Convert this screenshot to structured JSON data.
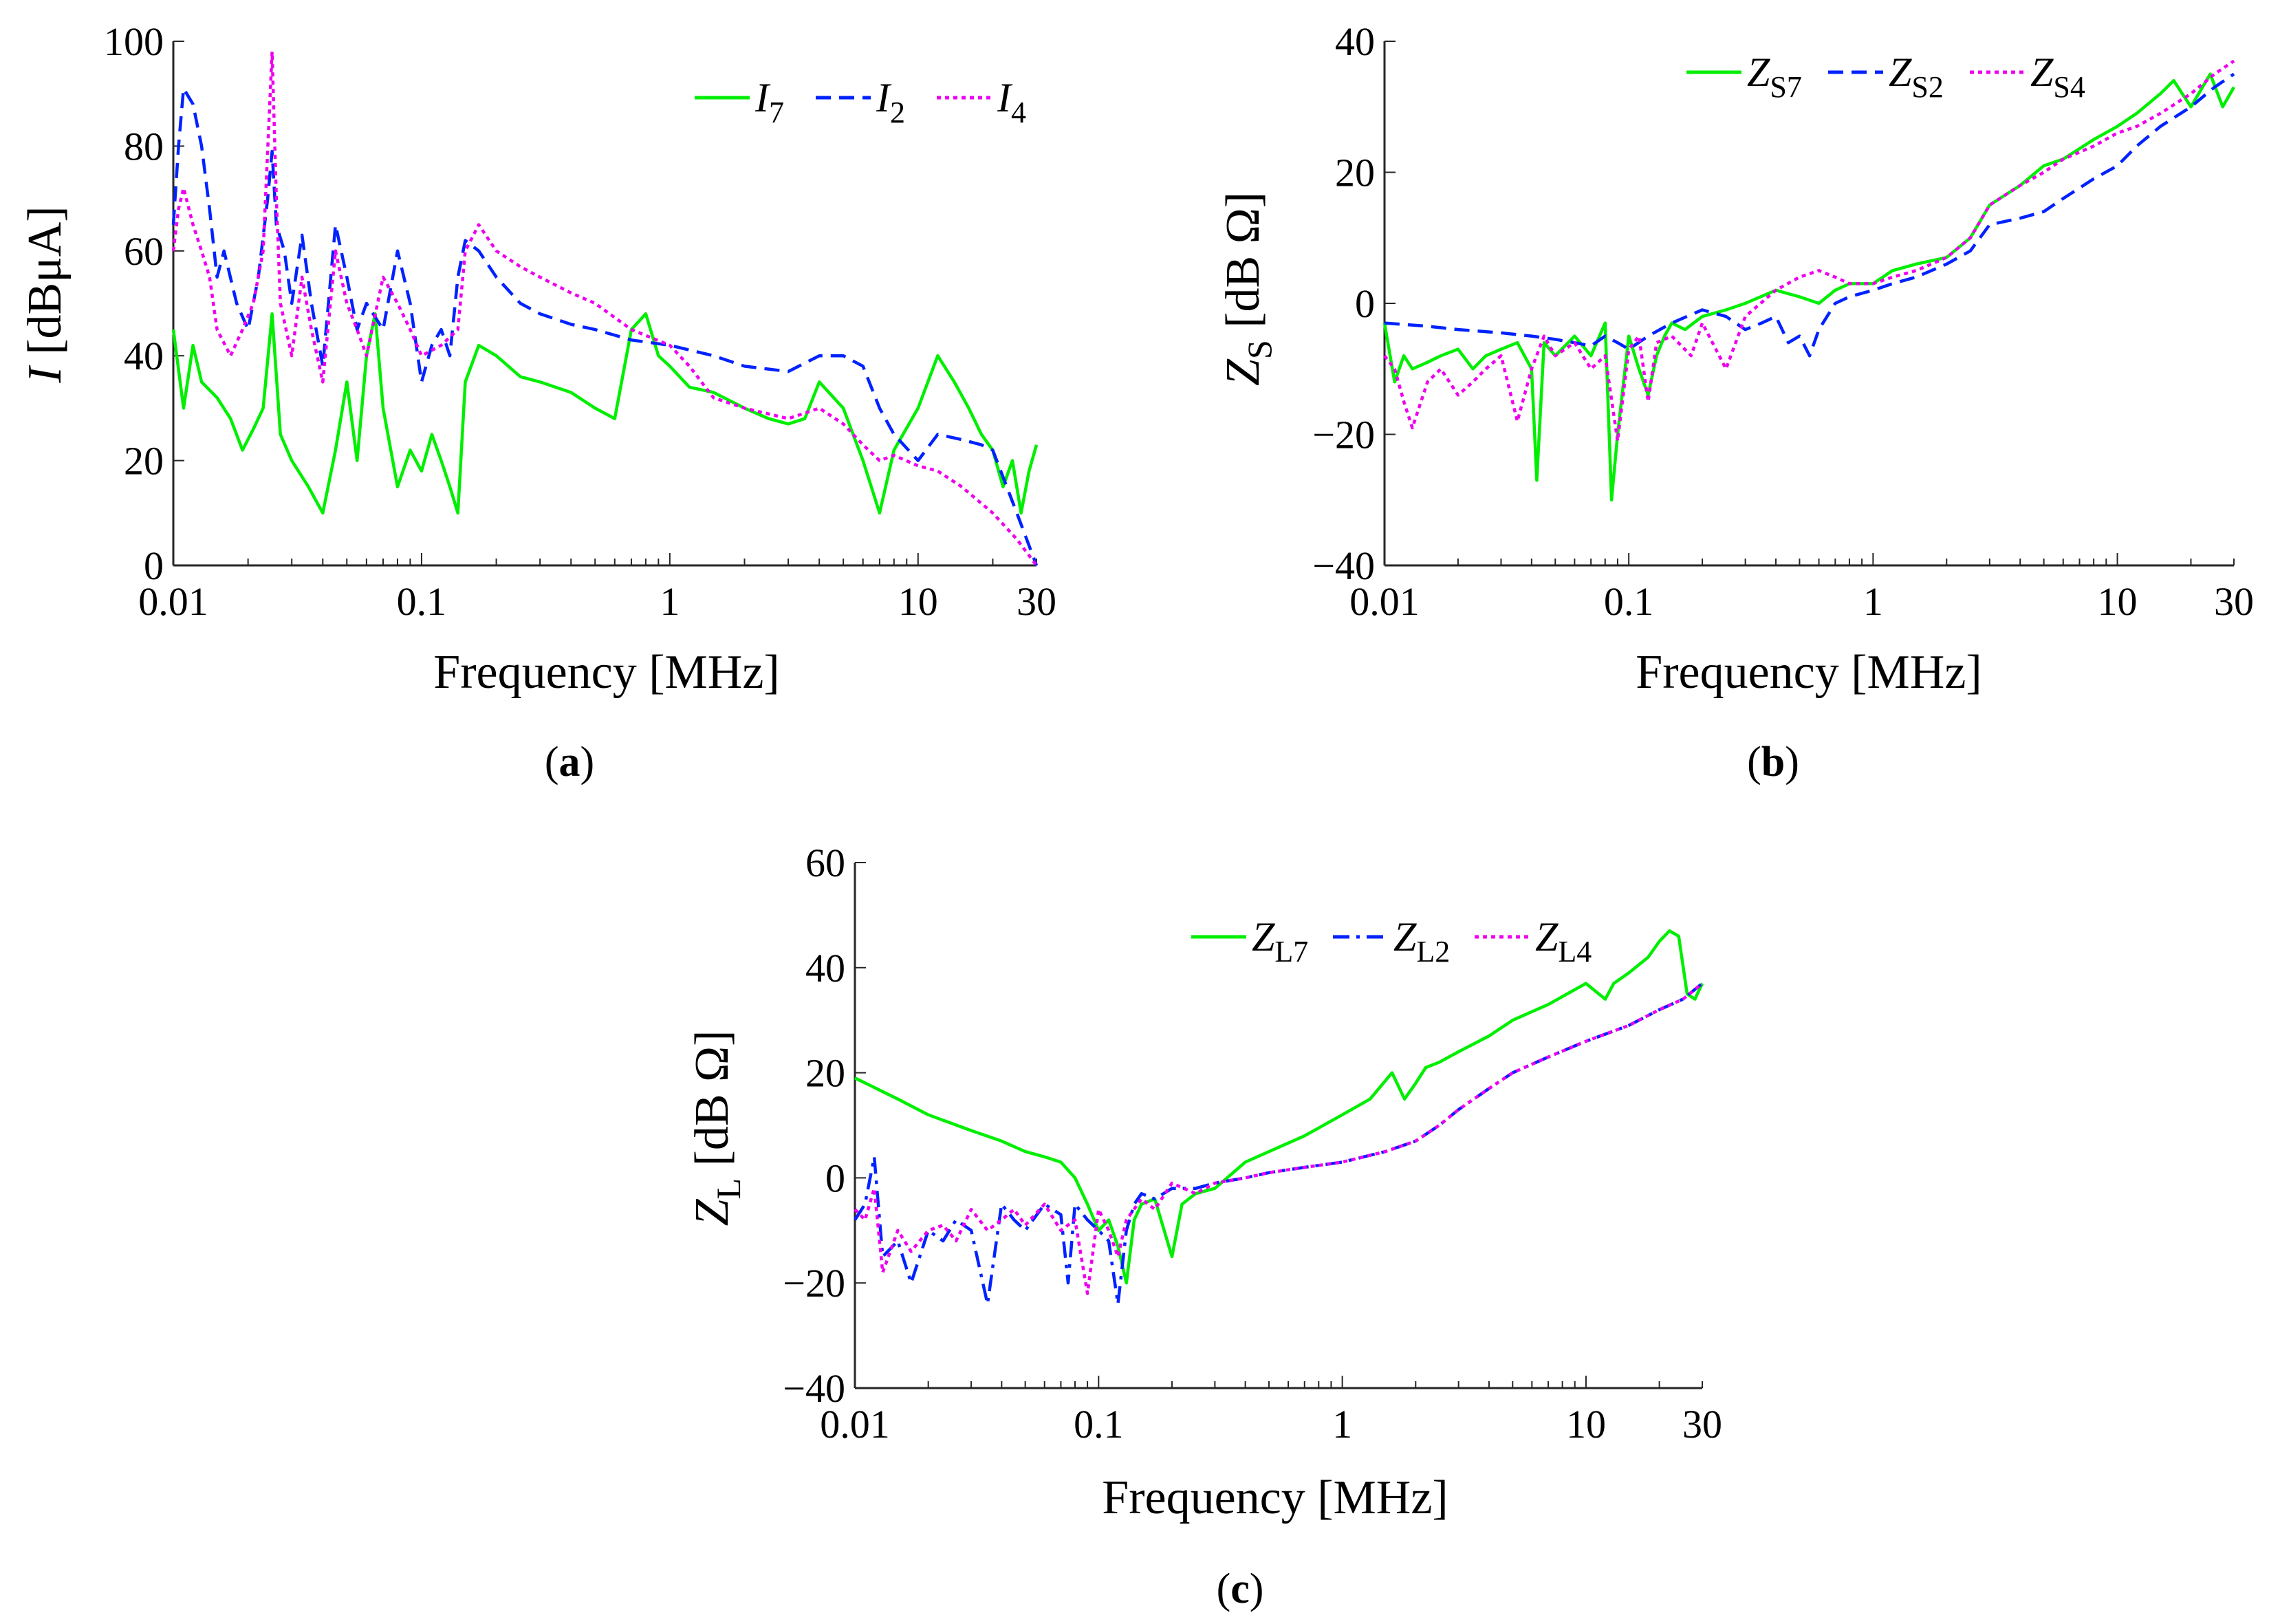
{
  "chart_data": [
    {
      "panel": "a",
      "caption_letter": "a",
      "type": "line",
      "x_scale": "log",
      "xlim": [
        0.01,
        30
      ],
      "ylim": [
        0,
        100
      ],
      "xticks": [
        0.01,
        0.1,
        1,
        10,
        30
      ],
      "xtick_labels": [
        "0.01",
        "0.1",
        "1",
        "10",
        "30"
      ],
      "yticks": [
        0,
        20,
        40,
        60,
        80,
        100
      ],
      "ytick_labels": [
        "0",
        "20",
        "40",
        "60",
        "80",
        "100"
      ],
      "xlabel": "Frequency [MHz]",
      "ylabel": {
        "symbol": "I",
        "unit": "[dBμA]"
      },
      "legend_position": "top-right",
      "series": [
        {
          "name": "I",
          "sub": "7",
          "color": "#00ee00",
          "dash": "solid",
          "x": [
            0.01,
            0.011,
            0.012,
            0.013,
            0.015,
            0.017,
            0.019,
            0.021,
            0.023,
            0.025,
            0.027,
            0.03,
            0.035,
            0.04,
            0.045,
            0.05,
            0.055,
            0.06,
            0.065,
            0.07,
            0.08,
            0.09,
            0.1,
            0.11,
            0.12,
            0.13,
            0.14,
            0.15,
            0.17,
            0.2,
            0.25,
            0.3,
            0.4,
            0.5,
            0.6,
            0.7,
            0.8,
            0.9,
            1,
            1.2,
            1.5,
            2,
            2.5,
            3,
            3.5,
            4,
            5,
            6,
            7,
            8,
            10,
            12,
            14,
            16,
            18,
            20,
            22,
            24,
            26,
            28,
            30
          ],
          "y": [
            45,
            30,
            42,
            35,
            32,
            28,
            22,
            26,
            30,
            48,
            25,
            20,
            15,
            10,
            22,
            35,
            20,
            40,
            48,
            30,
            15,
            22,
            18,
            25,
            20,
            15,
            10,
            35,
            42,
            40,
            36,
            35,
            33,
            30,
            28,
            45,
            48,
            40,
            38,
            34,
            33,
            30,
            28,
            27,
            28,
            35,
            30,
            20,
            10,
            22,
            30,
            40,
            35,
            30,
            25,
            22,
            15,
            20,
            10,
            18,
            23
          ]
        },
        {
          "name": "I",
          "sub": "2",
          "color": "#0022ff",
          "dash": "dashed",
          "x": [
            0.01,
            0.0105,
            0.011,
            0.012,
            0.013,
            0.014,
            0.015,
            0.016,
            0.018,
            0.02,
            0.022,
            0.024,
            0.025,
            0.026,
            0.028,
            0.03,
            0.033,
            0.036,
            0.04,
            0.045,
            0.05,
            0.055,
            0.06,
            0.07,
            0.08,
            0.09,
            0.1,
            0.11,
            0.12,
            0.13,
            0.14,
            0.15,
            0.17,
            0.2,
            0.25,
            0.3,
            0.4,
            0.5,
            0.7,
            1,
            1.5,
            2,
            3,
            4,
            5,
            6,
            7,
            8,
            10,
            12,
            15,
            18,
            20,
            25,
            30
          ],
          "y": [
            65,
            80,
            91,
            88,
            80,
            68,
            55,
            60,
            50,
            45,
            55,
            70,
            79,
            65,
            60,
            50,
            63,
            50,
            38,
            65,
            55,
            45,
            50,
            45,
            60,
            50,
            35,
            42,
            45,
            40,
            55,
            62,
            60,
            55,
            50,
            48,
            46,
            45,
            43,
            42,
            40,
            38,
            37,
            40,
            40,
            38,
            30,
            25,
            20,
            25,
            24,
            23,
            22,
            10,
            0
          ]
        },
        {
          "name": "I",
          "sub": "4",
          "color": "#ee00ee",
          "dash": "dotted",
          "x": [
            0.01,
            0.0105,
            0.011,
            0.012,
            0.013,
            0.014,
            0.015,
            0.017,
            0.019,
            0.021,
            0.023,
            0.025,
            0.026,
            0.027,
            0.03,
            0.033,
            0.036,
            0.04,
            0.045,
            0.05,
            0.055,
            0.06,
            0.07,
            0.08,
            0.09,
            0.1,
            0.12,
            0.14,
            0.15,
            0.17,
            0.2,
            0.25,
            0.3,
            0.4,
            0.5,
            0.7,
            1,
            1.2,
            1.5,
            2,
            3,
            4,
            5,
            6,
            7,
            8,
            10,
            12,
            15,
            20,
            25,
            30
          ],
          "y": [
            60,
            68,
            72,
            65,
            60,
            55,
            45,
            40,
            45,
            50,
            60,
            98,
            70,
            50,
            40,
            55,
            45,
            35,
            60,
            50,
            45,
            40,
            55,
            50,
            45,
            40,
            42,
            45,
            60,
            65,
            60,
            57,
            55,
            52,
            50,
            45,
            42,
            38,
            32,
            30,
            28,
            30,
            27,
            23,
            20,
            21,
            19,
            18,
            15,
            10,
            5,
            0
          ]
        }
      ]
    },
    {
      "panel": "b",
      "caption_letter": "b",
      "type": "line",
      "x_scale": "log",
      "xlim": [
        0.01,
        30
      ],
      "ylim": [
        -40,
        40
      ],
      "xticks": [
        0.01,
        0.1,
        1,
        10,
        30
      ],
      "xtick_labels": [
        "0.01",
        "0.1",
        "1",
        "10",
        "30"
      ],
      "yticks": [
        -40,
        -20,
        0,
        20,
        40
      ],
      "ytick_labels": [
        "−40",
        "−20",
        "0",
        "20",
        "40"
      ],
      "xlabel": "Frequency [MHz]",
      "ylabel": {
        "symbol": "Z",
        "sub": "S",
        "unit": "[dB Ω]"
      },
      "legend_position": "top",
      "series": [
        {
          "name": "Z",
          "sub": "S7",
          "color": "#00ee00",
          "dash": "solid",
          "x": [
            0.01,
            0.011,
            0.012,
            0.013,
            0.015,
            0.017,
            0.02,
            0.023,
            0.026,
            0.03,
            0.035,
            0.04,
            0.042,
            0.045,
            0.05,
            0.06,
            0.07,
            0.08,
            0.085,
            0.09,
            0.1,
            0.11,
            0.12,
            0.13,
            0.14,
            0.15,
            0.17,
            0.2,
            0.25,
            0.3,
            0.4,
            0.5,
            0.6,
            0.7,
            0.8,
            1,
            1.2,
            1.5,
            2,
            2.5,
            3,
            4,
            5,
            6,
            8,
            10,
            12,
            15,
            17,
            20,
            24,
            27,
            30
          ],
          "y": [
            -3,
            -12,
            -8,
            -10,
            -9,
            -8,
            -7,
            -10,
            -8,
            -7,
            -6,
            -10,
            -27,
            -6,
            -8,
            -5,
            -8,
            -3,
            -30,
            -20,
            -5,
            -10,
            -14,
            -8,
            -5,
            -3,
            -4,
            -2,
            -1,
            0,
            2,
            1,
            0,
            2,
            3,
            3,
            5,
            6,
            7,
            10,
            15,
            18,
            21,
            22,
            25,
            27,
            29,
            32,
            34,
            30,
            35,
            30,
            33
          ]
        },
        {
          "name": "Z",
          "sub": "S2",
          "color": "#0022ff",
          "dash": "dashed",
          "x": [
            0.01,
            0.015,
            0.02,
            0.03,
            0.04,
            0.05,
            0.06,
            0.07,
            0.08,
            0.09,
            0.1,
            0.12,
            0.15,
            0.2,
            0.25,
            0.3,
            0.35,
            0.4,
            0.45,
            0.5,
            0.55,
            0.6,
            0.7,
            0.8,
            1,
            1.2,
            1.5,
            2,
            2.5,
            3,
            4,
            5,
            6,
            8,
            10,
            12,
            15,
            20,
            25,
            30
          ],
          "y": [
            -3,
            -3.5,
            -4,
            -4.5,
            -5,
            -5.5,
            -6,
            -6.5,
            -5,
            -6,
            -7,
            -5,
            -3,
            -1,
            -2,
            -4,
            -3,
            -2,
            -6,
            -5,
            -8,
            -4,
            0,
            1,
            2,
            3,
            4,
            6,
            8,
            12,
            13,
            14,
            16,
            19,
            21,
            24,
            27,
            30,
            33,
            35
          ]
        },
        {
          "name": "Z",
          "sub": "S4",
          "color": "#ee00ee",
          "dash": "dotted",
          "x": [
            0.01,
            0.011,
            0.012,
            0.013,
            0.015,
            0.017,
            0.02,
            0.023,
            0.026,
            0.03,
            0.035,
            0.04,
            0.045,
            0.05,
            0.06,
            0.07,
            0.08,
            0.09,
            0.1,
            0.11,
            0.12,
            0.13,
            0.15,
            0.18,
            0.2,
            0.25,
            0.3,
            0.4,
            0.5,
            0.6,
            0.7,
            0.8,
            1,
            1.2,
            1.5,
            2,
            2.5,
            3,
            4,
            5,
            6,
            8,
            10,
            12,
            15,
            20,
            25,
            30
          ],
          "y": [
            -8,
            -10,
            -15,
            -19,
            -12,
            -10,
            -14,
            -12,
            -10,
            -8,
            -18,
            -10,
            -5,
            -8,
            -6,
            -10,
            -8,
            -21,
            -7,
            -5,
            -15,
            -6,
            -5,
            -8,
            -3,
            -10,
            -2,
            2,
            4,
            5,
            4,
            3,
            3,
            4,
            5,
            7,
            10,
            15,
            18,
            20,
            22,
            24,
            26,
            27,
            29,
            32,
            35,
            37
          ]
        }
      ]
    },
    {
      "panel": "c",
      "caption_letter": "c",
      "type": "line",
      "x_scale": "log",
      "xlim": [
        0.01,
        30
      ],
      "ylim": [
        -40,
        60
      ],
      "xticks": [
        0.01,
        0.1,
        1,
        10,
        30
      ],
      "xtick_labels": [
        "0.01",
        "0.1",
        "1",
        "10",
        "30"
      ],
      "yticks": [
        -40,
        -20,
        0,
        20,
        40,
        60
      ],
      "ytick_labels": [
        "−40",
        "−20",
        "0",
        "20",
        "40",
        "60"
      ],
      "xlabel": "Frequency [MHz]",
      "ylabel": {
        "symbol": "Z",
        "sub": "L",
        "unit": "[dB Ω]"
      },
      "legend_position": "top-right",
      "series": [
        {
          "name": "Z",
          "sub": "L7",
          "color": "#00ee00",
          "dash": "solid",
          "x": [
            0.01,
            0.015,
            0.02,
            0.03,
            0.04,
            0.05,
            0.06,
            0.07,
            0.08,
            0.09,
            0.1,
            0.11,
            0.12,
            0.13,
            0.14,
            0.15,
            0.17,
            0.2,
            0.22,
            0.25,
            0.3,
            0.4,
            0.5,
            0.7,
            1,
            1.3,
            1.6,
            1.8,
            2,
            2.2,
            2.5,
            3,
            4,
            5,
            7,
            10,
            12,
            13,
            15,
            18,
            20,
            22,
            24,
            26,
            28,
            30
          ],
          "y": [
            19,
            15,
            12,
            9,
            7,
            5,
            4,
            3,
            0,
            -5,
            -10,
            -8,
            -13,
            -20,
            -8,
            -5,
            -4,
            -15,
            -5,
            -3,
            -2,
            3,
            5,
            8,
            12,
            15,
            20,
            15,
            18,
            21,
            22,
            24,
            27,
            30,
            33,
            37,
            34,
            37,
            39,
            42,
            45,
            47,
            46,
            35,
            34,
            37
          ]
        },
        {
          "name": "Z",
          "sub": "L2",
          "color": "#0022ff",
          "dash": "dashdot",
          "x": [
            0.01,
            0.011,
            0.012,
            0.013,
            0.015,
            0.017,
            0.02,
            0.023,
            0.026,
            0.03,
            0.035,
            0.04,
            0.045,
            0.05,
            0.06,
            0.07,
            0.075,
            0.08,
            0.09,
            0.1,
            0.11,
            0.12,
            0.13,
            0.14,
            0.15,
            0.17,
            0.2,
            0.25,
            0.3,
            0.4,
            0.5,
            0.7,
            1,
            1.5,
            2,
            2.5,
            3,
            4,
            5,
            7,
            10,
            15,
            20,
            25,
            30
          ],
          "y": [
            -8,
            -5,
            4,
            -15,
            -12,
            -20,
            -10,
            -12,
            -8,
            -10,
            -24,
            -5,
            -8,
            -10,
            -5,
            -7,
            -20,
            -5,
            -8,
            -10,
            -12,
            -24,
            -10,
            -5,
            -3,
            -4,
            -2,
            -2,
            -1,
            0,
            1,
            2,
            3,
            5,
            7,
            10,
            13,
            17,
            20,
            23,
            26,
            29,
            32,
            34,
            37
          ]
        },
        {
          "name": "Z",
          "sub": "L4",
          "color": "#ee00ee",
          "dash": "dotted",
          "x": [
            0.01,
            0.011,
            0.012,
            0.013,
            0.015,
            0.017,
            0.02,
            0.023,
            0.026,
            0.03,
            0.035,
            0.04,
            0.045,
            0.05,
            0.06,
            0.07,
            0.08,
            0.09,
            0.1,
            0.11,
            0.12,
            0.13,
            0.15,
            0.17,
            0.2,
            0.25,
            0.3,
            0.4,
            0.5,
            0.7,
            1,
            1.5,
            2,
            2.5,
            3,
            4,
            5,
            7,
            10,
            15,
            20,
            25,
            30
          ],
          "y": [
            -6,
            -8,
            -2,
            -18,
            -10,
            -14,
            -10,
            -9,
            -12,
            -6,
            -10,
            -8,
            -6,
            -9,
            -5,
            -10,
            -8,
            -22,
            -6,
            -10,
            -15,
            -8,
            -4,
            -6,
            -1,
            -3,
            -1,
            0,
            1,
            2,
            3,
            5,
            7,
            10,
            13,
            17,
            20,
            23,
            26,
            29,
            32,
            34,
            37
          ]
        }
      ]
    }
  ]
}
